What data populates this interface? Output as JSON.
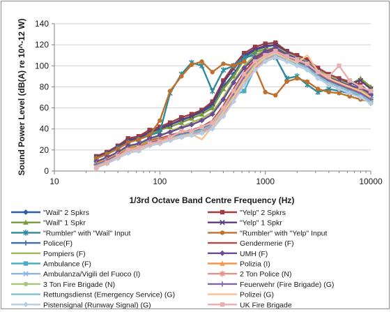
{
  "chart_data": {
    "type": "line",
    "xlabel": "1/3rd Octave Band Centre Frequency (Hz)",
    "ylabel": "Sound Power Level (dB(A) re 10^-12 W)",
    "x_scale": "log",
    "xlim": [
      10,
      10000
    ],
    "ylim": [
      0,
      140
    ],
    "x_ticks": [
      "10",
      "100",
      "1000",
      "10000"
    ],
    "y_ticks": [
      "0",
      "20",
      "40",
      "60",
      "80",
      "100",
      "120",
      "140"
    ],
    "grid": "horizontal",
    "legend_position": "bottom",
    "x": [
      25,
      31.5,
      40,
      50,
      63,
      80,
      100,
      125,
      160,
      200,
      250,
      315,
      400,
      500,
      630,
      800,
      1000,
      1250,
      1600,
      2000,
      2500,
      3150,
      4000,
      5000,
      6300,
      8000,
      10000
    ],
    "series": [
      {
        "name": "\"Wail\" 2 Spkrs",
        "color": "#2e5fa3",
        "marker": "diamond",
        "values": [
          13,
          17,
          23,
          30,
          32,
          37,
          41,
          44,
          48,
          52,
          56,
          62,
          80,
          92,
          108,
          115,
          118,
          120,
          112,
          108,
          104,
          96,
          90,
          86,
          84,
          80,
          72
        ]
      },
      {
        "name": "\"Yelp\" 2 Spkrs",
        "color": "#a03c3c",
        "marker": "square",
        "values": [
          14,
          18,
          24,
          31,
          33,
          39,
          42,
          46,
          51,
          54,
          58,
          66,
          86,
          100,
          112,
          118,
          121,
          122,
          114,
          110,
          106,
          98,
          92,
          88,
          85,
          82,
          74
        ]
      },
      {
        "name": "\"Wail\" 1 Spkr",
        "color": "#7a9a3a",
        "marker": "triangle",
        "values": [
          12,
          16,
          22,
          28,
          30,
          35,
          39,
          42,
          46,
          50,
          54,
          60,
          78,
          90,
          106,
          113,
          116,
          117,
          110,
          106,
          102,
          94,
          88,
          84,
          82,
          88,
          80
        ]
      },
      {
        "name": "\"Yelp\" 1 Spkr",
        "color": "#5a3d7a",
        "marker": "x",
        "values": [
          13,
          17,
          23,
          29,
          31,
          37,
          40,
          44,
          49,
          52,
          57,
          64,
          84,
          97,
          110,
          116,
          119,
          120,
          113,
          108,
          104,
          96,
          90,
          86,
          83,
          86,
          78
        ]
      },
      {
        "name": "\"Rumbler\" with \"Wail\" Input",
        "color": "#2f8a99",
        "marker": "star",
        "values": [
          12,
          16,
          22,
          27,
          30,
          34,
          37,
          74,
          92,
          103,
          100,
          76,
          96,
          100,
          108,
          110,
          112,
          108,
          88,
          90,
          82,
          75,
          78,
          76,
          74,
          72,
          68
        ]
      },
      {
        "name": "\"Rumbler\" with \"Yelp\" Input",
        "color": "#c0702c",
        "marker": "circle",
        "values": [
          12,
          16,
          21,
          27,
          30,
          34,
          48,
          76,
          90,
          101,
          104,
          94,
          102,
          100,
          104,
          98,
          75,
          72,
          85,
          88,
          85,
          78,
          75,
          74,
          71,
          68,
          66
        ]
      },
      {
        "name": "Police(F)",
        "color": "#3f6cb0",
        "marker": "plus",
        "values": [
          6,
          10,
          15,
          21,
          23,
          28,
          30,
          33,
          36,
          38,
          40,
          46,
          60,
          75,
          92,
          104,
          112,
          115,
          110,
          106,
          102,
          94,
          88,
          84,
          80,
          76,
          70
        ]
      },
      {
        "name": "Gendermerie (F)",
        "color": "#b04a4a",
        "marker": "none",
        "values": [
          7,
          11,
          16,
          22,
          24,
          29,
          31,
          34,
          37,
          39,
          42,
          48,
          62,
          78,
          94,
          106,
          113,
          116,
          111,
          107,
          103,
          95,
          89,
          85,
          81,
          77,
          71
        ]
      },
      {
        "name": "Pompiers (F)",
        "color": "#9bbb59",
        "marker": "none",
        "values": [
          8,
          12,
          17,
          23,
          25,
          30,
          33,
          38,
          42,
          46,
          50,
          56,
          70,
          86,
          100,
          110,
          115,
          118,
          112,
          108,
          104,
          96,
          90,
          86,
          82,
          78,
          72
        ]
      },
      {
        "name": "UMH (F)",
        "color": "#6a4c93",
        "marker": "diamond",
        "values": [
          9,
          13,
          18,
          24,
          26,
          31,
          34,
          37,
          41,
          44,
          48,
          54,
          68,
          84,
          98,
          108,
          114,
          117,
          111,
          107,
          103,
          95,
          89,
          85,
          81,
          79,
          73
        ]
      },
      {
        "name": "Ambulance (F)",
        "color": "#4bacc6",
        "marker": "square",
        "values": [
          6,
          10,
          15,
          20,
          22,
          27,
          29,
          32,
          35,
          37,
          40,
          45,
          58,
          72,
          76,
          98,
          108,
          112,
          108,
          104,
          100,
          92,
          86,
          82,
          78,
          74,
          68
        ]
      },
      {
        "name": "Polizia (I)",
        "color": "#f79646",
        "marker": "triangle",
        "values": [
          7,
          11,
          16,
          21,
          23,
          28,
          30,
          33,
          36,
          38,
          41,
          47,
          60,
          76,
          92,
          104,
          110,
          114,
          109,
          105,
          101,
          93,
          87,
          83,
          79,
          75,
          69
        ]
      },
      {
        "name": "Ambulanza/Vigili del Fuoco (I)",
        "color": "#8db3e2",
        "marker": "x",
        "values": [
          5,
          9,
          14,
          19,
          21,
          26,
          28,
          31,
          34,
          36,
          38,
          43,
          56,
          70,
          86,
          100,
          108,
          112,
          107,
          103,
          99,
          91,
          85,
          81,
          77,
          73,
          67
        ]
      },
      {
        "name": "2 Ton Police (N)",
        "color": "#e5938a",
        "marker": "star",
        "values": [
          4,
          8,
          13,
          18,
          20,
          25,
          27,
          30,
          33,
          35,
          37,
          42,
          55,
          68,
          84,
          98,
          106,
          110,
          106,
          102,
          98,
          90,
          84,
          80,
          76,
          72,
          66
        ]
      },
      {
        "name": "3 Ton Fire Brigade (N)",
        "color": "#a9c47f",
        "marker": "circle",
        "values": [
          5,
          9,
          14,
          19,
          21,
          26,
          28,
          32,
          35,
          38,
          40,
          45,
          58,
          72,
          88,
          102,
          108,
          112,
          107,
          103,
          99,
          91,
          85,
          81,
          77,
          73,
          67
        ]
      },
      {
        "name": "Feuerwehr (Fire Brigade) (G)",
        "color": "#8064a2",
        "marker": "plus",
        "values": [
          6,
          10,
          15,
          20,
          22,
          27,
          29,
          32,
          35,
          37,
          40,
          46,
          60,
          74,
          90,
          104,
          110,
          114,
          108,
          104,
          100,
          92,
          86,
          82,
          78,
          74,
          68
        ]
      },
      {
        "name": "Rettungsdienst (Emergency Service) (G)",
        "color": "#7fbfd2",
        "marker": "none",
        "values": [
          5,
          9,
          14,
          19,
          21,
          26,
          28,
          31,
          34,
          36,
          39,
          44,
          57,
          70,
          86,
          100,
          107,
          111,
          106,
          102,
          98,
          90,
          84,
          80,
          76,
          72,
          66
        ]
      },
      {
        "name": "Polizei (G)",
        "color": "#fac090",
        "marker": "none",
        "values": [
          4,
          8,
          13,
          18,
          20,
          25,
          27,
          30,
          33,
          35,
          30,
          42,
          56,
          70,
          86,
          100,
          108,
          112,
          107,
          103,
          110,
          95,
          88,
          84,
          80,
          76,
          70
        ]
      },
      {
        "name": "Pistensignal (Runway Signal) (G)",
        "color": "#b8cce4",
        "marker": "diamond",
        "values": [
          3,
          7,
          12,
          17,
          19,
          24,
          26,
          29,
          32,
          34,
          36,
          40,
          52,
          66,
          82,
          96,
          104,
          108,
          104,
          100,
          96,
          88,
          82,
          78,
          74,
          70,
          64
        ]
      },
      {
        "name": "UK Fire Brigade",
        "color": "#e6b0b0",
        "marker": "square",
        "values": [
          3,
          8,
          14,
          20,
          22,
          26,
          28,
          32,
          38,
          38,
          42,
          46,
          60,
          76,
          92,
          104,
          110,
          114,
          109,
          106,
          102,
          94,
          90,
          100,
          86,
          80,
          76
        ]
      }
    ]
  }
}
